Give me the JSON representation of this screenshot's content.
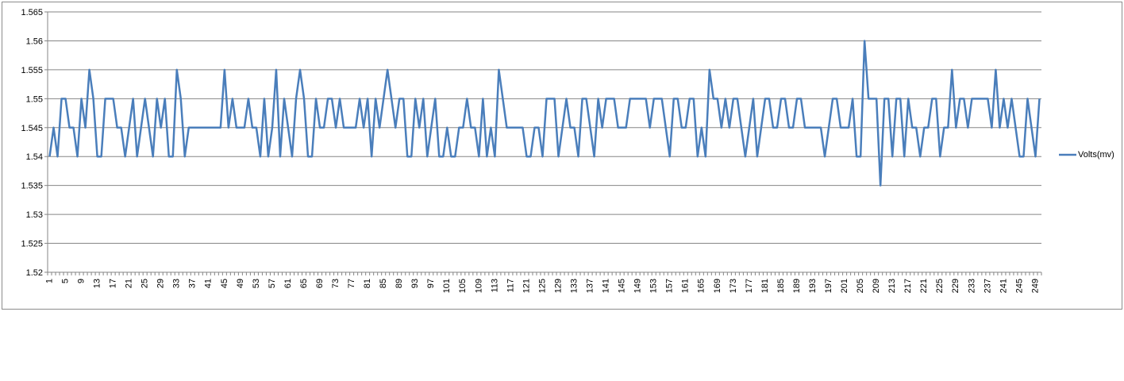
{
  "chart_data": {
    "type": "line",
    "title": "",
    "xlabel": "",
    "ylabel": "",
    "ylim": [
      1.52,
      1.565
    ],
    "y_ticks": [
      1.52,
      1.525,
      1.53,
      1.535,
      1.54,
      1.545,
      1.55,
      1.555,
      1.56,
      1.565
    ],
    "y_tick_labels": [
      "1.52",
      "1.525",
      "1.53",
      "1.535",
      "1.54",
      "1.545",
      "1.55",
      "1.555",
      "1.56",
      "1.565"
    ],
    "x": [
      1,
      2,
      3,
      4,
      5,
      6,
      7,
      8,
      9,
      10,
      11,
      12,
      13,
      14,
      15,
      16,
      17,
      18,
      19,
      20,
      21,
      22,
      23,
      24,
      25,
      26,
      27,
      28,
      29,
      30,
      31,
      32,
      33,
      34,
      35,
      36,
      37,
      38,
      39,
      40,
      41,
      42,
      43,
      44,
      45,
      46,
      47,
      48,
      49,
      50,
      51,
      52,
      53,
      54,
      55,
      56,
      57,
      58,
      59,
      60,
      61,
      62,
      63,
      64,
      65,
      66,
      67,
      68,
      69,
      70,
      71,
      72,
      73,
      74,
      75,
      76,
      77,
      78,
      79,
      80,
      81,
      82,
      83,
      84,
      85,
      86,
      87,
      88,
      89,
      90,
      91,
      92,
      93,
      94,
      95,
      96,
      97,
      98,
      99,
      100,
      101,
      102,
      103,
      104,
      105,
      106,
      107,
      108,
      109,
      110,
      111,
      112,
      113,
      114,
      115,
      116,
      117,
      118,
      119,
      120,
      121,
      122,
      123,
      124,
      125,
      126,
      127,
      128,
      129,
      130,
      131,
      132,
      133,
      134,
      135,
      136,
      137,
      138,
      139,
      140,
      141,
      142,
      143,
      144,
      145,
      146,
      147,
      148,
      149,
      150,
      151,
      152,
      153,
      154,
      155,
      156,
      157,
      158,
      159,
      160,
      161,
      162,
      163,
      164,
      165,
      166,
      167,
      168,
      169,
      170,
      171,
      172,
      173,
      174,
      175,
      176,
      177,
      178,
      179,
      180,
      181,
      182,
      183,
      184,
      185,
      186,
      187,
      188,
      189,
      190,
      191,
      192,
      193,
      194,
      195,
      196,
      197,
      198,
      199,
      200,
      201,
      202,
      203,
      204,
      205,
      206,
      207,
      208,
      209,
      210,
      211,
      212,
      213,
      214,
      215,
      216,
      217,
      218,
      219,
      220,
      221,
      222,
      223,
      224,
      225,
      226,
      227,
      228,
      229,
      230,
      231,
      232,
      233,
      234,
      235,
      236,
      237,
      238,
      239,
      240,
      241,
      242,
      243,
      244,
      245,
      246,
      247,
      248,
      249,
      250
    ],
    "x_tick_labels": [
      "1",
      "5",
      "9",
      "13",
      "17",
      "21",
      "25",
      "29",
      "33",
      "37",
      "41",
      "45",
      "49",
      "53",
      "57",
      "61",
      "65",
      "69",
      "73",
      "77",
      "81",
      "85",
      "89",
      "93",
      "97",
      "101",
      "105",
      "109",
      "113",
      "117",
      "121",
      "125",
      "129",
      "133",
      "137",
      "141",
      "145",
      "149",
      "153",
      "157",
      "161",
      "165",
      "169",
      "173",
      "177",
      "181",
      "185",
      "189",
      "193",
      "197",
      "201",
      "205",
      "209",
      "213",
      "217",
      "221",
      "225",
      "229",
      "233",
      "237",
      "241",
      "245",
      "249"
    ],
    "series": [
      {
        "name": "Volts(mv)",
        "color": "#4a7ebb",
        "values": [
          1.54,
          1.545,
          1.54,
          1.55,
          1.55,
          1.545,
          1.545,
          1.54,
          1.55,
          1.545,
          1.555,
          1.55,
          1.54,
          1.54,
          1.55,
          1.55,
          1.55,
          1.545,
          1.545,
          1.54,
          1.545,
          1.55,
          1.54,
          1.545,
          1.55,
          1.545,
          1.54,
          1.55,
          1.545,
          1.55,
          1.54,
          1.54,
          1.555,
          1.55,
          1.54,
          1.545,
          1.545,
          1.545,
          1.545,
          1.545,
          1.545,
          1.545,
          1.545,
          1.545,
          1.555,
          1.545,
          1.55,
          1.545,
          1.545,
          1.545,
          1.55,
          1.545,
          1.545,
          1.54,
          1.55,
          1.54,
          1.545,
          1.555,
          1.54,
          1.55,
          1.545,
          1.54,
          1.55,
          1.555,
          1.55,
          1.54,
          1.54,
          1.55,
          1.545,
          1.545,
          1.55,
          1.55,
          1.545,
          1.55,
          1.545,
          1.545,
          1.545,
          1.545,
          1.55,
          1.545,
          1.55,
          1.54,
          1.55,
          1.545,
          1.55,
          1.555,
          1.55,
          1.545,
          1.55,
          1.55,
          1.54,
          1.54,
          1.55,
          1.545,
          1.55,
          1.54,
          1.545,
          1.55,
          1.54,
          1.54,
          1.545,
          1.54,
          1.54,
          1.545,
          1.545,
          1.55,
          1.545,
          1.545,
          1.54,
          1.55,
          1.54,
          1.545,
          1.54,
          1.555,
          1.55,
          1.545,
          1.545,
          1.545,
          1.545,
          1.545,
          1.54,
          1.54,
          1.545,
          1.545,
          1.54,
          1.55,
          1.55,
          1.55,
          1.54,
          1.545,
          1.55,
          1.545,
          1.545,
          1.54,
          1.55,
          1.55,
          1.545,
          1.54,
          1.55,
          1.545,
          1.55,
          1.55,
          1.55,
          1.545,
          1.545,
          1.545,
          1.55,
          1.55,
          1.55,
          1.55,
          1.55,
          1.545,
          1.55,
          1.55,
          1.55,
          1.545,
          1.54,
          1.55,
          1.55,
          1.545,
          1.545,
          1.55,
          1.55,
          1.54,
          1.545,
          1.54,
          1.555,
          1.55,
          1.55,
          1.545,
          1.55,
          1.545,
          1.55,
          1.55,
          1.545,
          1.54,
          1.545,
          1.55,
          1.54,
          1.545,
          1.55,
          1.55,
          1.545,
          1.545,
          1.55,
          1.55,
          1.545,
          1.545,
          1.55,
          1.55,
          1.545,
          1.545,
          1.545,
          1.545,
          1.545,
          1.54,
          1.545,
          1.55,
          1.55,
          1.545,
          1.545,
          1.545,
          1.55,
          1.54,
          1.54,
          1.56,
          1.55,
          1.55,
          1.55,
          1.535,
          1.55,
          1.55,
          1.54,
          1.55,
          1.55,
          1.54,
          1.55,
          1.545,
          1.545,
          1.54,
          1.545,
          1.545,
          1.55,
          1.55,
          1.54,
          1.545,
          1.545,
          1.555,
          1.545,
          1.55,
          1.55,
          1.545,
          1.55,
          1.55,
          1.55,
          1.55,
          1.55,
          1.545,
          1.555,
          1.545,
          1.55,
          1.545,
          1.55,
          1.545,
          1.54,
          1.54,
          1.55,
          1.545,
          1.54,
          1.55
        ]
      }
    ],
    "grid": true,
    "legend_position": "right"
  }
}
